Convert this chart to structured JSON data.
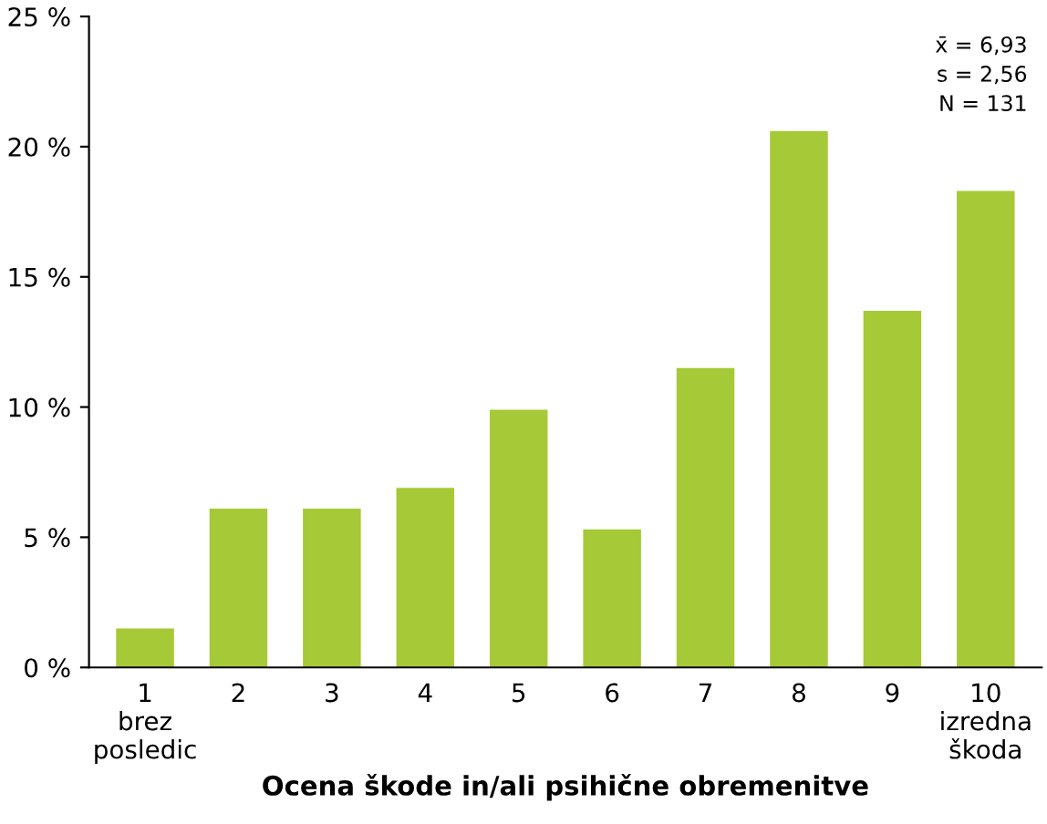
{
  "chart_data": {
    "type": "bar",
    "xlabel": "Ocena škode in/ali psihične obremenitve",
    "categories": [
      "1\nbrez\nposledic",
      "2",
      "3",
      "4",
      "5",
      "6",
      "7",
      "8",
      "9",
      "10\nizredna\nškoda"
    ],
    "values": [
      1.5,
      6.1,
      6.1,
      6.9,
      9.9,
      5.3,
      11.5,
      20.6,
      13.7,
      18.3
    ],
    "color": "#a6c937",
    "ylim": [
      0,
      25
    ],
    "yticks": [
      {
        "value": 0,
        "label": "0 %"
      },
      {
        "value": 5,
        "label": "5 %"
      },
      {
        "value": 10,
        "label": "10 %"
      },
      {
        "value": 15,
        "label": "15 %"
      },
      {
        "value": 20,
        "label": "20 %"
      },
      {
        "value": 25,
        "label": "25 %"
      }
    ],
    "annotations": [
      "x̄ = 6,93",
      "s = 2,56",
      "N = 131"
    ],
    "grid": false,
    "legend": false
  }
}
